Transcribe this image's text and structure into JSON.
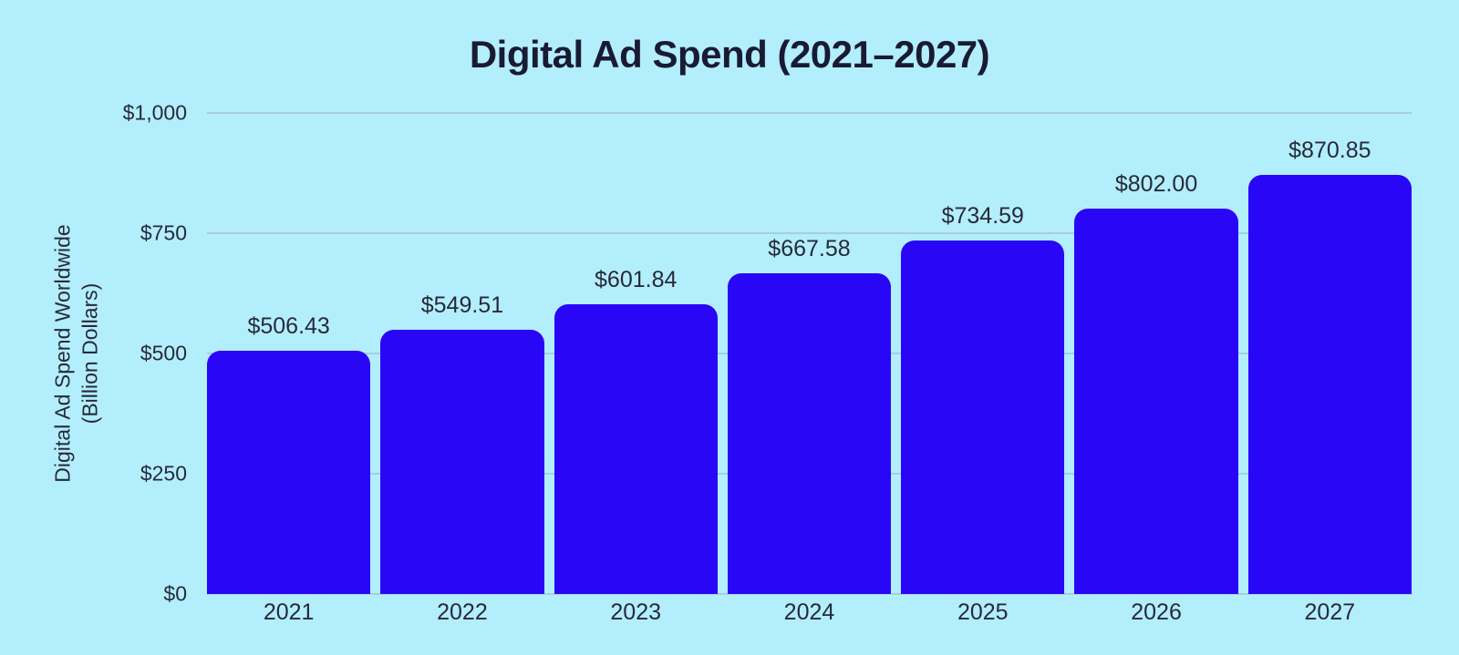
{
  "title": "Digital Ad Spend (2021–2027)",
  "y_axis": {
    "title_line1": "Digital Ad Spend Worldwide",
    "title_line2": "(Billion Dollars)"
  },
  "chart_data": {
    "type": "bar",
    "title": "Digital Ad Spend (2021–2027)",
    "xlabel": "",
    "ylabel": "Digital Ad Spend Worldwide (Billion Dollars)",
    "categories": [
      "2021",
      "2022",
      "2023",
      "2024",
      "2025",
      "2026",
      "2027"
    ],
    "values": [
      506.43,
      549.51,
      601.84,
      667.58,
      734.59,
      802.0,
      870.85
    ],
    "value_labels": [
      "$506.43",
      "$549.51",
      "$601.84",
      "$667.58",
      "$734.59",
      "$802.00",
      "$870.85"
    ],
    "ylim": [
      0,
      1000
    ],
    "yticks": [
      {
        "label": "$0",
        "value": 0
      },
      {
        "label": "$250",
        "value": 250
      },
      {
        "label": "$500",
        "value": 500
      },
      {
        "label": "$750",
        "value": 750
      },
      {
        "label": "$1,000",
        "value": 1000
      }
    ],
    "grid": true,
    "legend_position": "none"
  },
  "colors": {
    "background": "#b3eefc",
    "bar": "#2a06f7",
    "title_text": "#191b33",
    "label_text": "#272a3a",
    "gridline": "#a5cfdd"
  }
}
